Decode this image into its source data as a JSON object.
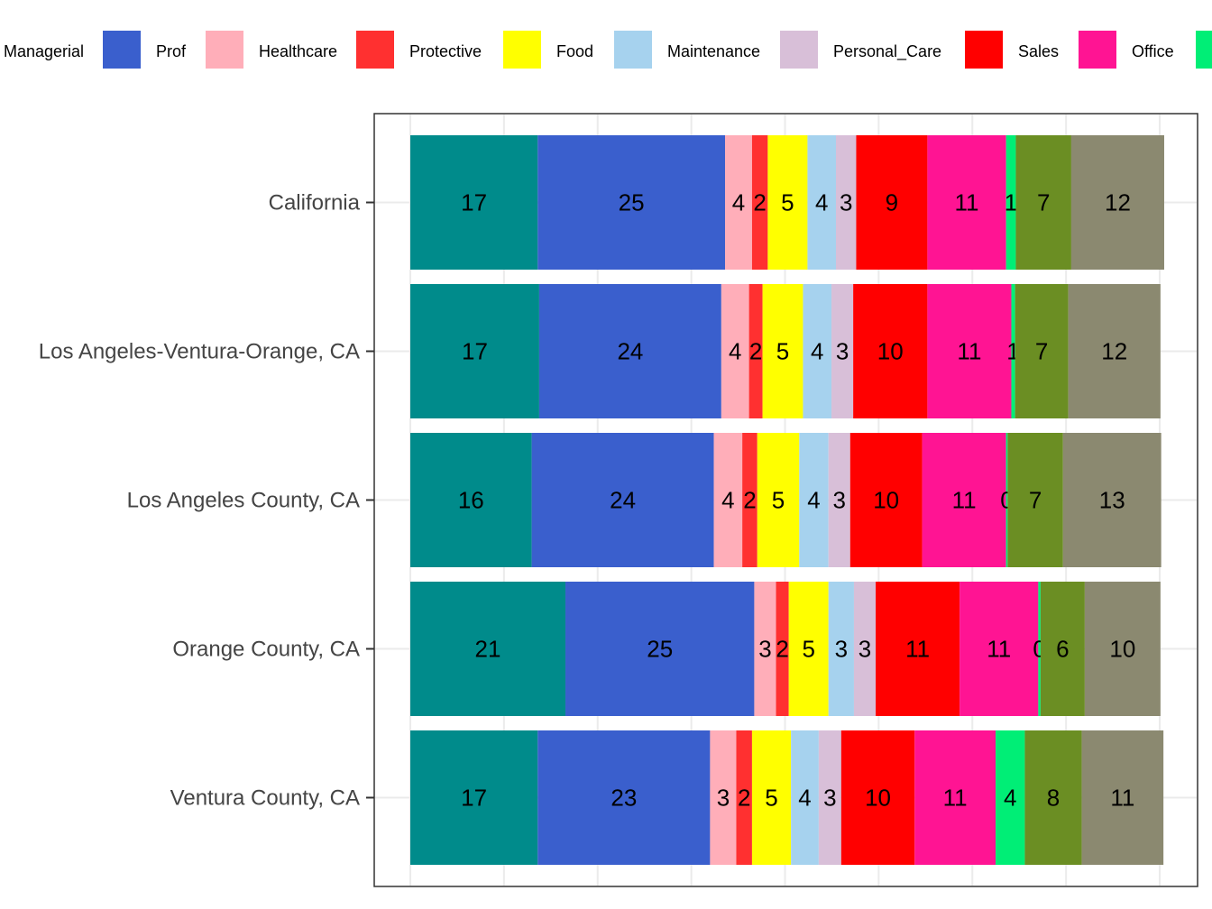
{
  "chart_data": {
    "type": "bar",
    "orientation": "horizontal",
    "stacked": true,
    "categories": [
      "California",
      "Los Angeles-Ventura-Orange, CA",
      "Los Angeles County, CA",
      "Orange County, CA",
      "Ventura County, CA"
    ],
    "series": [
      {
        "name": "Managerial",
        "color": "#008B8B",
        "values": [
          17,
          17,
          16,
          21,
          17
        ],
        "exact": [
          17,
          17.2,
          16.2,
          20.7,
          17
        ]
      },
      {
        "name": "Prof",
        "color": "#3A5FCD",
        "values": [
          25,
          24,
          24,
          25,
          23
        ],
        "exact": [
          25,
          24.3,
          24.3,
          25.2,
          23
        ]
      },
      {
        "name": "Healthcare",
        "color": "#FFAEB9",
        "values": [
          4,
          4,
          4,
          3,
          3
        ],
        "exact": [
          3.6,
          3.7,
          3.8,
          2.9,
          3.5
        ]
      },
      {
        "name": "Protective",
        "color": "#FF3030",
        "values": [
          2,
          2,
          2,
          2,
          2
        ],
        "exact": [
          2.1,
          1.8,
          2,
          1.7,
          2.1
        ]
      },
      {
        "name": "Food",
        "color": "#FFFF00",
        "values": [
          5,
          5,
          5,
          5,
          5
        ],
        "exact": [
          5.3,
          5.4,
          5.6,
          5.3,
          5.2
        ]
      },
      {
        "name": "Maintenance",
        "color": "#A6D2EE",
        "values": [
          4,
          4,
          4,
          3,
          4
        ],
        "exact": [
          3.8,
          3.8,
          3.9,
          3.4,
          3.7
        ]
      },
      {
        "name": "Personal_Care",
        "color": "#D8BFD8",
        "values": [
          3,
          3,
          3,
          3,
          3
        ],
        "exact": [
          2.7,
          2.9,
          2.9,
          2.9,
          3
        ]
      },
      {
        "name": "Sales",
        "color": "#FF0000",
        "values": [
          9,
          10,
          10,
          11,
          10
        ],
        "exact": [
          9.5,
          9.9,
          9.6,
          11.2,
          9.8
        ]
      },
      {
        "name": "Office",
        "color": "#FF1493",
        "values": [
          11,
          11,
          11,
          11,
          11
        ],
        "exact": [
          10.5,
          11.2,
          11.2,
          10.5,
          10.8
        ]
      },
      {
        "name": "",
        "color": "#00EE76",
        "values": [
          1,
          1,
          0,
          0,
          4
        ],
        "exact": [
          1.3,
          0.5,
          0.2,
          0.3,
          3.9
        ]
      },
      {
        "name": "",
        "color": "#6B8E23",
        "values": [
          7,
          7,
          7,
          6,
          8
        ],
        "exact": [
          7.4,
          7.1,
          7.4,
          5.9,
          7.6
        ]
      },
      {
        "name": "",
        "color": "#8B8970",
        "values": [
          12,
          12,
          13,
          10,
          11
        ],
        "exact": [
          12.4,
          12.3,
          13.1,
          10.1,
          10.9
        ]
      }
    ],
    "xlim": [
      0,
      100
    ],
    "grid": true,
    "legend_position": "top",
    "title": "",
    "xlabel": "",
    "ylabel": ""
  }
}
